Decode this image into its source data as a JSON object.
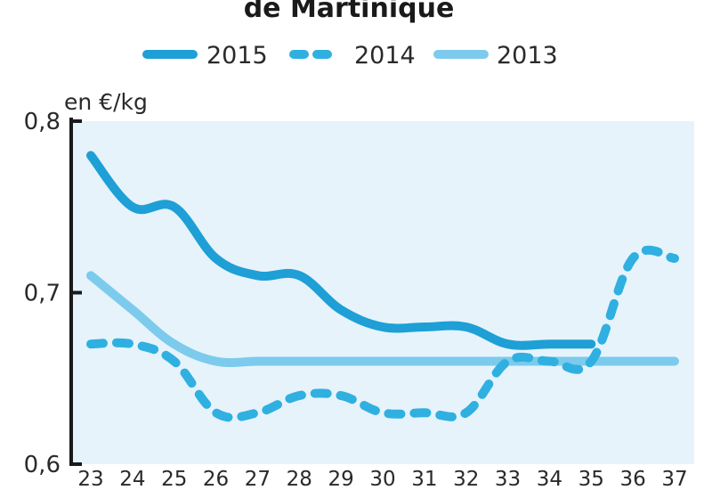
{
  "chart_data": {
    "type": "line",
    "title": "de Martinique",
    "ylabel": "en €/kg",
    "xlabel": "",
    "ylim": [
      0.6,
      0.8
    ],
    "yticks": [
      "0,6",
      "0,7",
      "0,8"
    ],
    "x": [
      "23",
      "24",
      "25",
      "26",
      "27",
      "28",
      "29",
      "30",
      "31",
      "32",
      "33",
      "34",
      "35",
      "36",
      "37"
    ],
    "grid": false,
    "legend": "top",
    "background_color": "#e6f3fb",
    "series": [
      {
        "name": "2015",
        "color": "#1e9fd6",
        "style": "solid",
        "values": [
          0.78,
          0.75,
          0.75,
          0.72,
          0.71,
          0.71,
          0.69,
          0.68,
          0.68,
          0.68,
          0.67,
          0.67,
          0.67,
          null,
          null
        ]
      },
      {
        "name": "2014",
        "color": "#2fb0e0",
        "style": "dashed",
        "values": [
          0.67,
          0.67,
          0.66,
          0.63,
          0.63,
          0.64,
          0.64,
          0.63,
          0.63,
          0.63,
          0.66,
          0.66,
          0.66,
          0.72,
          0.72
        ]
      },
      {
        "name": "2013",
        "color": "#7ccbec",
        "style": "solid",
        "values": [
          0.71,
          0.69,
          0.67,
          0.66,
          0.66,
          0.66,
          0.66,
          0.66,
          0.66,
          0.66,
          0.66,
          0.66,
          0.66,
          0.66,
          0.66
        ]
      }
    ]
  }
}
